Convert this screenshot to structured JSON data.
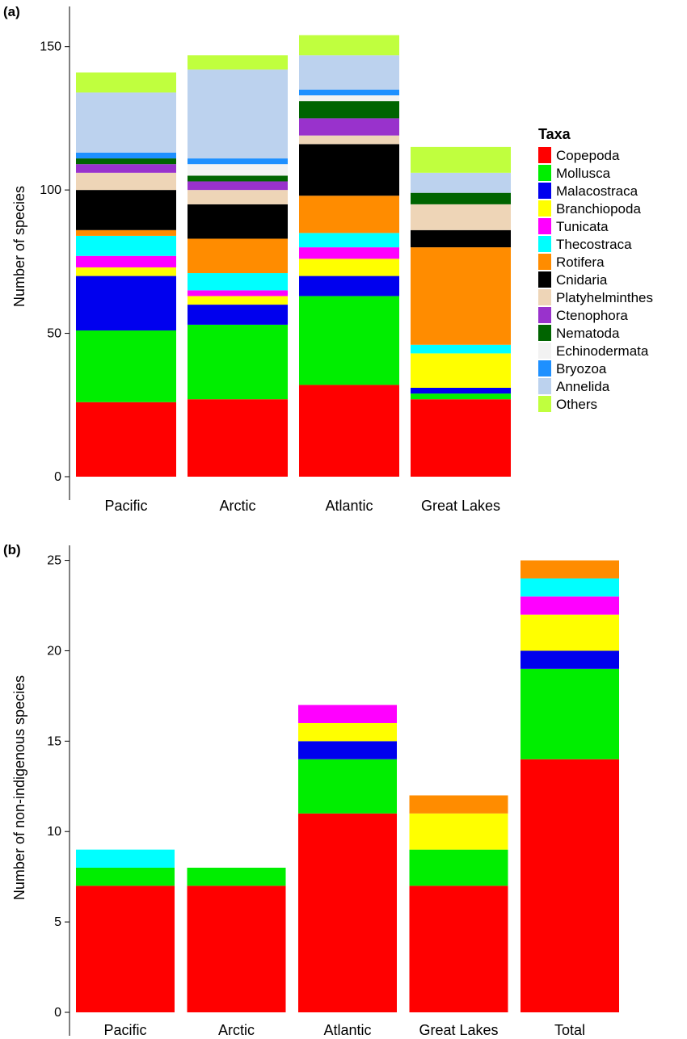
{
  "chart_data": [
    {
      "type": "bar",
      "stacked": true,
      "panel_label": "(a)",
      "title": "",
      "xlabel": "",
      "ylabel": "Number of species",
      "ylim": [
        0,
        160
      ],
      "yticks": [
        0,
        50,
        100,
        150
      ],
      "categories": [
        "Pacific",
        "Arctic",
        "Atlantic",
        "Great Lakes"
      ],
      "legend": {
        "title": "Taxa",
        "position": "right"
      },
      "series": [
        {
          "name": "Copepoda",
          "color": "#ff0000",
          "values": [
            26,
            27,
            32,
            27
          ]
        },
        {
          "name": "Mollusca",
          "color": "#00ee00",
          "values": [
            25,
            26,
            31,
            2
          ]
        },
        {
          "name": "Malacostraca",
          "color": "#0000ee",
          "values": [
            19,
            7,
            7,
            2
          ]
        },
        {
          "name": "Branchiopoda",
          "color": "#ffff00",
          "values": [
            3,
            3,
            6,
            12
          ]
        },
        {
          "name": "Tunicata",
          "color": "#ff00ff",
          "values": [
            4,
            2,
            4,
            0
          ]
        },
        {
          "name": "Thecostraca",
          "color": "#00ffff",
          "values": [
            7,
            6,
            5,
            3
          ]
        },
        {
          "name": "Rotifera",
          "color": "#ff8c00",
          "values": [
            2,
            12,
            13,
            34
          ]
        },
        {
          "name": "Cnidaria",
          "color": "#000000",
          "values": [
            14,
            12,
            18,
            6
          ]
        },
        {
          "name": "Platyhelminthes",
          "color": "#eed5b7",
          "values": [
            6,
            5,
            3,
            9
          ]
        },
        {
          "name": "Ctenophora",
          "color": "#9932cc",
          "values": [
            3,
            3,
            6,
            0
          ]
        },
        {
          "name": "Nematoda",
          "color": "#006400",
          "values": [
            2,
            2,
            6,
            4
          ]
        },
        {
          "name": "Echinodermata",
          "color": "#f2f2f2",
          "values": [
            0,
            4,
            2,
            0
          ]
        },
        {
          "name": "Bryozoa",
          "color": "#1e90ff",
          "values": [
            2,
            2,
            2,
            0
          ]
        },
        {
          "name": "Annelida",
          "color": "#bcd2ee",
          "values": [
            21,
            31,
            12,
            7
          ]
        },
        {
          "name": "Others",
          "color": "#c0ff3e",
          "values": [
            7,
            5,
            7,
            9
          ]
        }
      ]
    },
    {
      "type": "bar",
      "stacked": true,
      "panel_label": "(b)",
      "title": "",
      "xlabel": "",
      "ylabel": "Number of non-indigenous species",
      "ylim": [
        0,
        26
      ],
      "yticks": [
        0,
        5,
        10,
        15,
        20,
        25
      ],
      "categories": [
        "Pacific",
        "Arctic",
        "Atlantic",
        "Great Lakes",
        "Total"
      ],
      "series": [
        {
          "name": "Copepoda",
          "color": "#ff0000",
          "values": [
            7,
            7,
            11,
            7,
            14
          ]
        },
        {
          "name": "Mollusca",
          "color": "#00ee00",
          "values": [
            1,
            1,
            3,
            2,
            5
          ]
        },
        {
          "name": "Malacostraca",
          "color": "#0000ee",
          "values": [
            0,
            0,
            1,
            0,
            1
          ]
        },
        {
          "name": "Branchiopoda",
          "color": "#ffff00",
          "values": [
            0,
            0,
            1,
            2,
            2
          ]
        },
        {
          "name": "Tunicata",
          "color": "#ff00ff",
          "values": [
            0,
            0,
            1,
            0,
            1
          ]
        },
        {
          "name": "Thecostraca",
          "color": "#00ffff",
          "values": [
            1,
            0,
            0,
            0,
            1
          ]
        },
        {
          "name": "Rotifera",
          "color": "#ff8c00",
          "values": [
            0,
            0,
            0,
            1,
            1
          ]
        }
      ]
    }
  ]
}
